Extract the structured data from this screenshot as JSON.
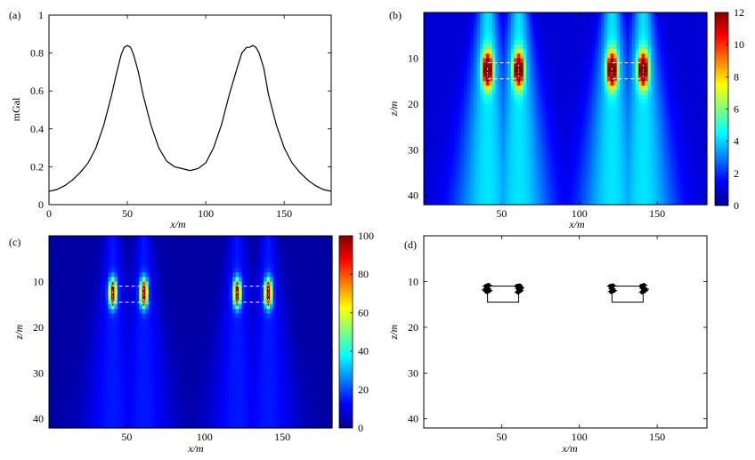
{
  "chart_data": [
    {
      "panel": "(a)",
      "type": "line",
      "xlabel": "x/m",
      "ylabel": "mGal",
      "xlim": [
        0,
        180
      ],
      "ylim": [
        0,
        1
      ],
      "x_ticks": [
        0,
        50,
        100,
        150
      ],
      "y_ticks": [
        0,
        0.2,
        0.4,
        0.6,
        0.8,
        1
      ],
      "y_tick_labels": [
        "0",
        "0.2",
        "0.4",
        "0.6",
        "0.8",
        "1"
      ],
      "grid": false,
      "series": [
        {
          "color": "#000000",
          "x": [
            0,
            5,
            10,
            15,
            20,
            25,
            30,
            35,
            40,
            43,
            46,
            48,
            50,
            52,
            54,
            57,
            60,
            65,
            70,
            75,
            80,
            85,
            90,
            95,
            100,
            105,
            110,
            115,
            120,
            123,
            126,
            128,
            130,
            132,
            134,
            137,
            140,
            145,
            150,
            155,
            160,
            165,
            170,
            175,
            180
          ],
          "y": [
            0.07,
            0.08,
            0.1,
            0.13,
            0.17,
            0.22,
            0.3,
            0.42,
            0.58,
            0.69,
            0.79,
            0.83,
            0.84,
            0.83,
            0.79,
            0.7,
            0.58,
            0.42,
            0.3,
            0.23,
            0.2,
            0.19,
            0.18,
            0.19,
            0.22,
            0.3,
            0.42,
            0.58,
            0.72,
            0.8,
            0.83,
            0.83,
            0.84,
            0.83,
            0.8,
            0.72,
            0.58,
            0.42,
            0.3,
            0.22,
            0.17,
            0.13,
            0.1,
            0.08,
            0.07
          ]
        }
      ]
    },
    {
      "panel": "(b)",
      "type": "heatmap",
      "xlabel": "x/m",
      "ylabel": "z/m",
      "xlim": [
        0,
        182
      ],
      "ylim": [
        42,
        0
      ],
      "x_ticks": [
        50,
        100,
        150
      ],
      "y_ticks": [
        10,
        20,
        30,
        40
      ],
      "colorbar": {
        "min": 0,
        "max": 12,
        "ticks": [
          0,
          2,
          4,
          6,
          8,
          10,
          12
        ]
      },
      "colormap": "jet",
      "grid": false,
      "sources": [
        {
          "x": 41,
          "z": 12.5,
          "peak": 12
        },
        {
          "x": 61,
          "z": 12.5,
          "peak": 12
        },
        {
          "x": 121,
          "z": 12.5,
          "peak": 12
        },
        {
          "x": 141,
          "z": 12.5,
          "peak": 12
        }
      ],
      "spread": {
        "sx": 2.2,
        "sz": 2.6,
        "background": 2.0
      },
      "dashed_boxes": [
        {
          "x": [
            41,
            61
          ],
          "z": [
            11,
            14.5
          ]
        },
        {
          "x": [
            121,
            141
          ],
          "z": [
            11,
            14.5
          ]
        }
      ]
    },
    {
      "panel": "(c)",
      "type": "heatmap",
      "xlabel": "x/m",
      "ylabel": "z/m",
      "xlim": [
        0,
        182
      ],
      "ylim": [
        42,
        0
      ],
      "x_ticks": [
        50,
        100,
        150
      ],
      "y_ticks": [
        10,
        20,
        30,
        40
      ],
      "colorbar": {
        "min": 0,
        "max": 100,
        "ticks": [
          0,
          20,
          40,
          60,
          80,
          100
        ]
      },
      "colormap": "jet",
      "grid": false,
      "sources": [
        {
          "x": 41,
          "z": 12.5,
          "peak": 100
        },
        {
          "x": 61,
          "z": 12.5,
          "peak": 100
        },
        {
          "x": 121,
          "z": 12.5,
          "peak": 100
        },
        {
          "x": 141,
          "z": 12.5,
          "peak": 100
        }
      ],
      "spread": {
        "sx": 1.6,
        "sz": 2.0,
        "background": 7.0
      },
      "dashed_boxes": [
        {
          "x": [
            41,
            61
          ],
          "z": [
            11,
            14.5
          ]
        },
        {
          "x": [
            121,
            141
          ],
          "z": [
            11,
            14.5
          ]
        }
      ]
    },
    {
      "panel": "(d)",
      "type": "scatter",
      "xlabel": "x/m",
      "ylabel": "z/m",
      "xlim": [
        0,
        182
      ],
      "ylim": [
        42,
        0
      ],
      "x_ticks": [
        50,
        100,
        150
      ],
      "y_ticks": [
        10,
        20,
        30,
        40
      ],
      "grid": false,
      "boxes": [
        {
          "x": [
            41,
            61
          ],
          "z": [
            11,
            14.5
          ]
        },
        {
          "x": [
            121,
            141
          ],
          "z": [
            11,
            14.5
          ]
        }
      ],
      "points": {
        "x": [
          40,
          41,
          42,
          40.5,
          41.5,
          39.5,
          60,
          61,
          62,
          60.5,
          61.5,
          62.5,
          120,
          121,
          122,
          120.5,
          121.5,
          140,
          141,
          142,
          140.5,
          141.5,
          142.5
        ],
        "z": [
          11,
          11.5,
          12,
          12.2,
          10.8,
          11.8,
          11,
          11.6,
          12,
          12.3,
          10.9,
          11.4,
          11,
          11.6,
          12,
          12.2,
          10.9,
          11,
          11.5,
          12,
          12.3,
          10.8,
          11.7
        ]
      }
    }
  ]
}
